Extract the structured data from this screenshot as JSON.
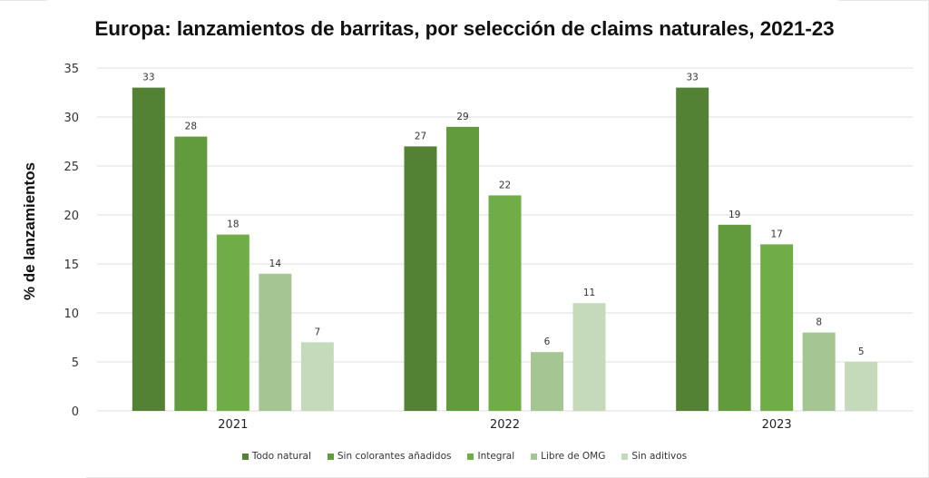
{
  "chart_data": {
    "type": "bar",
    "title": "Europa: lanzamientos de barritas, por selección de claims naturales, 2021-23",
    "xlabel": "",
    "ylabel": "% de lanzamientos",
    "ylim": [
      0,
      35
    ],
    "yticks": [
      "0",
      "5",
      "10",
      "15",
      "20",
      "25",
      "30",
      "35"
    ],
    "grid": true,
    "legend_position": "bottom",
    "categories": [
      "2021",
      "2022",
      "2023"
    ],
    "series": [
      {
        "name": "Todo natural",
        "color": "#548235",
        "values": [
          33,
          27,
          33
        ]
      },
      {
        "name": "Sin colorantes añadidos",
        "color": "#629b3e",
        "values": [
          28,
          29,
          19
        ]
      },
      {
        "name": "Integral",
        "color": "#70ad47",
        "values": [
          18,
          22,
          17
        ]
      },
      {
        "name": "Libre de OMG",
        "color": "#a5c593",
        "values": [
          14,
          6,
          8
        ]
      },
      {
        "name": "Sin aditivos",
        "color": "#c5dabb",
        "values": [
          7,
          11,
          5
        ]
      }
    ]
  }
}
